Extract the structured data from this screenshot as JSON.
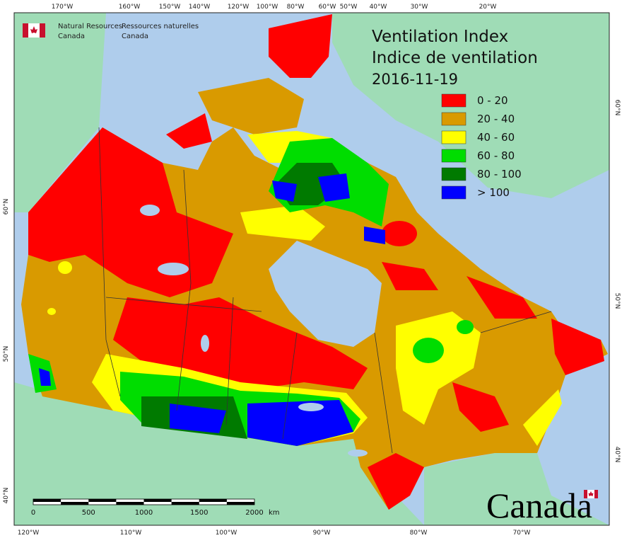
{
  "header": {
    "title_en": "Ventilation Index",
    "title_fr": "Indice de ventilation",
    "date": "2016-11-19"
  },
  "agency": {
    "en": [
      "Natural Resources",
      "Canada"
    ],
    "fr": [
      "Ressources naturelles",
      "Canada"
    ]
  },
  "legend": [
    {
      "label": "0 - 20",
      "color": "#ff0000"
    },
    {
      "label": "20 - 40",
      "color": "#d99a00"
    },
    {
      "label": "40 - 60",
      "color": "#ffff00"
    },
    {
      "label": "60 - 80",
      "color": "#00dd00"
    },
    {
      "label": "80 - 100",
      "color": "#007a00"
    },
    {
      "label": "> 100",
      "color": "#0000ff"
    }
  ],
  "top_longitudes": [
    "170°W",
    "160°W",
    "150°W",
    "140°W",
    "120°W",
    "100°W",
    "80°W",
    "60°W",
    "50°W",
    "40°W",
    "30°W",
    "20°W"
  ],
  "bottom_longitudes": [
    "120°W",
    "110°W",
    "100°W",
    "90°W",
    "80°W",
    "70°W"
  ],
  "left_latitudes": [
    "60°N",
    "50°N",
    "40°N"
  ],
  "right_latitudes": [
    "60°N",
    "50°N",
    "40°N"
  ],
  "scale": {
    "ticks": [
      "0",
      "500",
      "1000",
      "1500",
      "2000"
    ],
    "unit": "km"
  },
  "wordmark": "Canada"
}
